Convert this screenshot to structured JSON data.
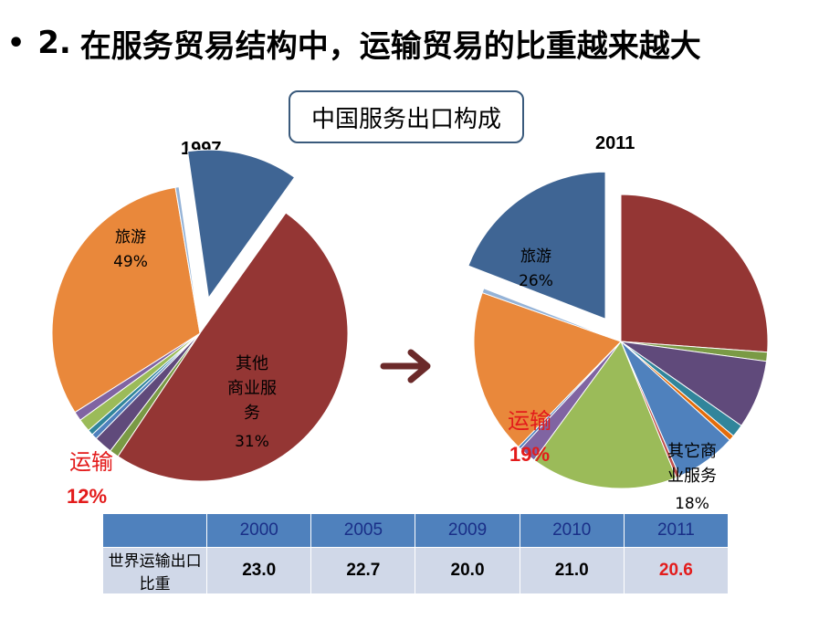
{
  "heading": {
    "bullet": "•",
    "number": "2.",
    "text": "在服务贸易结构中，运输贸易的比重越来越大"
  },
  "caption": "中国服务出口构成",
  "colors": {
    "travel": "#943634",
    "business": "#e9883b",
    "transport": "#3f6594",
    "highlight": "#e31b1b",
    "arrow": "#6b2a2a"
  },
  "chart_data": [
    {
      "type": "pie",
      "title": "1997",
      "slices": [
        {
          "label": "旅游",
          "value": 49,
          "value_label": "49%",
          "color": "#943634"
        },
        {
          "value": 1,
          "color": "#7a9a45"
        },
        {
          "value": 2,
          "color": "#604a7b"
        },
        {
          "value": 0.6,
          "color": "#4f81bd"
        },
        {
          "value": 0.6,
          "color": "#31859b"
        },
        {
          "value": 1.4,
          "color": "#9bbb59"
        },
        {
          "value": 1,
          "color": "#8064a2"
        },
        {
          "label": "其他商业服务",
          "value": 31,
          "value_label": "31%",
          "color": "#e9883b"
        },
        {
          "value": 0.4,
          "color": "#95b3d7"
        },
        {
          "label": "运输",
          "value": 12,
          "value_label": "12%",
          "color": "#3f6594",
          "exploded": true
        }
      ]
    },
    {
      "type": "pie",
      "title": "2011",
      "slices": [
        {
          "label": "旅游",
          "value": 26,
          "value_label": "26%",
          "color": "#943634"
        },
        {
          "value": 1,
          "color": "#7a9a45"
        },
        {
          "value": 7.5,
          "color": "#604a7b"
        },
        {
          "value": 1.4,
          "color": "#31859b"
        },
        {
          "value": 0.6,
          "color": "#e46c0a"
        },
        {
          "value": 6.7,
          "color": "#4f81bd"
        },
        {
          "value": 0.4,
          "color": "#c0504d"
        },
        {
          "value": 16.1,
          "color": "#9bbb59"
        },
        {
          "value": 1.9,
          "color": "#8064a2"
        },
        {
          "value": 0.3,
          "color": "#4f81bd"
        },
        {
          "label": "其它商业服务",
          "value": 18,
          "value_label": "18%",
          "color": "#e9883b"
        },
        {
          "value": 0.5,
          "color": "#95b3d7"
        },
        {
          "label": "运输",
          "value": 19,
          "value_label": "19%",
          "color": "#3f6594",
          "exploded": true
        }
      ]
    }
  ],
  "table": {
    "columns": [
      "2000",
      "2005",
      "2009",
      "2010",
      "2011"
    ],
    "row_label": "世界运输出口比重",
    "values": [
      "23.0",
      "22.7",
      "20.0",
      "21.0",
      "20.6"
    ]
  }
}
